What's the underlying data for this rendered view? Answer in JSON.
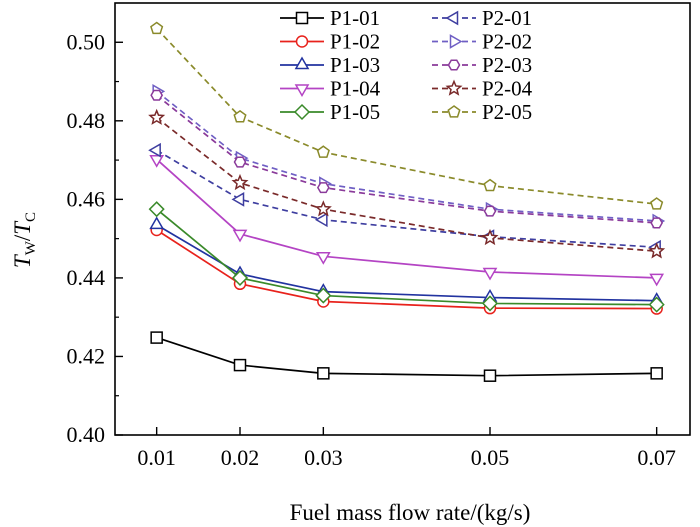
{
  "chart_data": {
    "type": "line",
    "xlabel": "Fuel mass flow rate/(kg/s)",
    "ylabel": "T_W/T_C",
    "ylabel_parts": {
      "main1": "T",
      "sub1": "W",
      "slash": "/",
      "main2": "T",
      "sub2": "C"
    },
    "x": [
      0.01,
      0.02,
      0.03,
      0.05,
      0.07
    ],
    "x_tick_labels": [
      "0.01",
      "0.02",
      "0.03",
      "0.05",
      "0.07"
    ],
    "xlim": [
      0.005,
      0.074
    ],
    "ylim": [
      0.4,
      0.51
    ],
    "y_ticks": [
      0.4,
      0.42,
      0.44,
      0.46,
      0.48,
      0.5
    ],
    "y_tick_labels": [
      "0.40",
      "0.42",
      "0.44",
      "0.46",
      "0.48",
      "0.50"
    ],
    "legend_position": "top-right",
    "series": [
      {
        "name": "P1-01",
        "color": "#000000",
        "marker": "square",
        "dash": false,
        "values": [
          0.4248,
          0.4178,
          0.4157,
          0.4151,
          0.4157
        ]
      },
      {
        "name": "P1-02",
        "color": "#e8221c",
        "marker": "circle",
        "dash": false,
        "values": [
          0.4522,
          0.4385,
          0.434,
          0.4323,
          0.4322
        ]
      },
      {
        "name": "P1-03",
        "color": "#2233a0",
        "marker": "triangle-up",
        "dash": false,
        "values": [
          0.4535,
          0.441,
          0.4365,
          0.435,
          0.4342
        ]
      },
      {
        "name": "P1-04",
        "color": "#b444c4",
        "marker": "triangle-down",
        "dash": false,
        "values": [
          0.4702,
          0.4512,
          0.4455,
          0.4415,
          0.44
        ]
      },
      {
        "name": "P1-05",
        "color": "#3a8a2a",
        "marker": "diamond",
        "dash": false,
        "values": [
          0.4575,
          0.44,
          0.4355,
          0.4335,
          0.4332
        ]
      },
      {
        "name": "P2-01",
        "color": "#3e3ea0",
        "marker": "triangle-left",
        "dash": true,
        "values": [
          0.4725,
          0.46,
          0.4548,
          0.4505,
          0.4478
        ]
      },
      {
        "name": "P2-02",
        "color": "#6f5fc4",
        "marker": "triangle-right",
        "dash": true,
        "values": [
          0.4875,
          0.4705,
          0.464,
          0.4575,
          0.4545
        ]
      },
      {
        "name": "P2-03",
        "color": "#8a3a9a",
        "marker": "hexagon",
        "dash": true,
        "values": [
          0.4865,
          0.4695,
          0.463,
          0.457,
          0.454
        ]
      },
      {
        "name": "P2-04",
        "color": "#7a2a2a",
        "marker": "star",
        "dash": true,
        "values": [
          0.4808,
          0.4642,
          0.4575,
          0.4502,
          0.4468
        ]
      },
      {
        "name": "P2-05",
        "color": "#8a8a2a",
        "marker": "pentagon",
        "dash": true,
        "values": [
          0.5035,
          0.481,
          0.472,
          0.4635,
          0.4588
        ]
      }
    ]
  }
}
